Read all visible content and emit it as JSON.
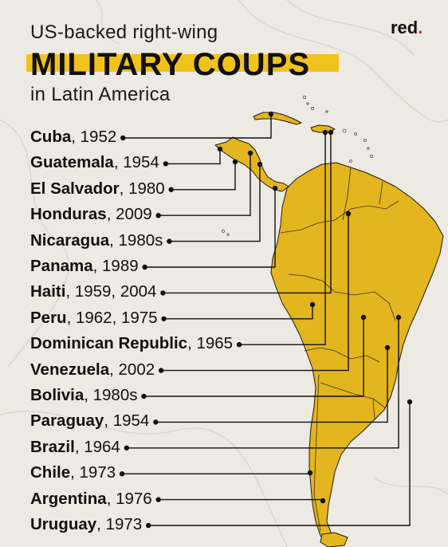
{
  "header": {
    "subtitle_top": "US-backed right-wing",
    "title": "MILITARY COUPS",
    "subtitle_bottom": "in Latin America",
    "brand": "red",
    "brand_dot": "."
  },
  "colors": {
    "highlight": "#f2c21c",
    "land": "#e3b51f",
    "background": "#ede9e3",
    "text": "#141414",
    "brand_dot": "#d6341d"
  },
  "coups": [
    {
      "country": "Cuba",
      "years": ", 1952"
    },
    {
      "country": "Guatemala",
      "years": ", 1954"
    },
    {
      "country": "El Salvador",
      "years": ", 1980"
    },
    {
      "country": "Honduras",
      "years": ", 2009"
    },
    {
      "country": "Nicaragua",
      "years": ", 1980s"
    },
    {
      "country": "Panama",
      "years": ", 1989"
    },
    {
      "country": "Haiti",
      "years": ", 1959, 2004"
    },
    {
      "country": "Peru",
      "years": ", 1962, 1975"
    },
    {
      "country": "Dominican Republic",
      "years": ", 1965"
    },
    {
      "country": "Venezuela",
      "years": ", 2002"
    },
    {
      "country": "Bolivia",
      "years": ", 1980s"
    },
    {
      "country": "Paraguay",
      "years": ", 1954"
    },
    {
      "country": "Brazil",
      "years": ", 1964"
    },
    {
      "country": "Chile",
      "years": ", 1973"
    },
    {
      "country": "Argentina",
      "years": ", 1976"
    },
    {
      "country": "Uruguay",
      "years": ", 1973"
    }
  ]
}
